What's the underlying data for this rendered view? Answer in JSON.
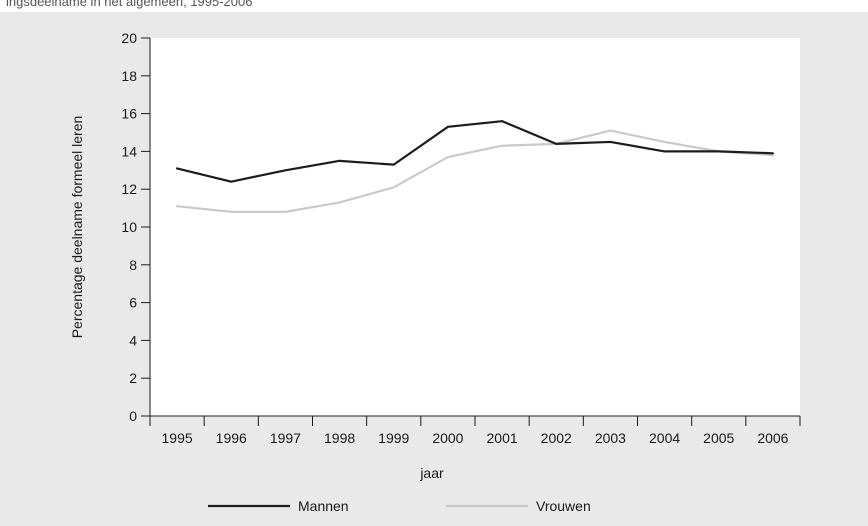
{
  "header": {
    "caption": "ingsdeelname in het algemeen, 1995-2006"
  },
  "colors": {
    "background": "#e9e9ea",
    "plot_area": "#ffffff",
    "mannen": "#1c1c1c",
    "vrouwen": "#c9c9c9"
  },
  "chart_data": {
    "type": "line",
    "title": "",
    "xlabel": "jaar",
    "ylabel": "Percentage deelname formeel leren",
    "ylim": [
      0,
      20
    ],
    "yticks": [
      0,
      2,
      4,
      6,
      8,
      10,
      12,
      14,
      16,
      18,
      20
    ],
    "grid": false,
    "legend_position": "bottom",
    "categories": [
      "1995",
      "1996",
      "1997",
      "1998",
      "1999",
      "2000",
      "2001",
      "2002",
      "2003",
      "2004",
      "2005",
      "2006"
    ],
    "series": [
      {
        "name": "Mannen",
        "values": [
          13.1,
          12.4,
          13.0,
          13.5,
          13.3,
          15.3,
          15.6,
          14.4,
          14.5,
          14.0,
          14.0,
          13.9
        ]
      },
      {
        "name": "Vrouwen",
        "values": [
          11.1,
          10.8,
          10.8,
          11.3,
          12.1,
          13.7,
          14.3,
          14.4,
          15.1,
          14.5,
          14.0,
          13.8
        ]
      }
    ]
  }
}
